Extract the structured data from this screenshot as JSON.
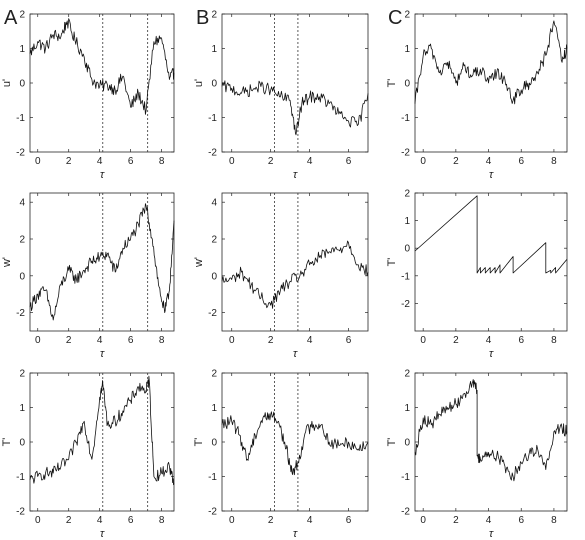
{
  "figure": {
    "column_labels": [
      "A",
      "B",
      "C"
    ]
  },
  "chart_data": [
    {
      "id": "A1",
      "type": "line",
      "xlabel": "τ",
      "ylabel": "u'",
      "xlim": [
        -0.5,
        8.8
      ],
      "ylim": [
        -2,
        2
      ],
      "xticks": [
        0,
        2,
        4,
        6,
        8
      ],
      "yticks": [
        -2,
        -1,
        0,
        1,
        2
      ],
      "vlines": [
        4.2,
        7.1
      ],
      "series": [
        {
          "x": [
            -0.5,
            0,
            0.5,
            1,
            1.5,
            1.9,
            2.4,
            3,
            3.5,
            4,
            4.5,
            5,
            5.5,
            6,
            6.5,
            7,
            7.5,
            8,
            8.5,
            8.8
          ],
          "values": [
            0.85,
            1.2,
            1.0,
            1.4,
            1.35,
            1.8,
            1.25,
            0.75,
            0.1,
            -0.1,
            -0.05,
            -0.2,
            0.2,
            -0.7,
            -0.3,
            -0.8,
            1.2,
            1.3,
            0.1,
            0.3
          ]
        }
      ]
    },
    {
      "id": "A2",
      "type": "line",
      "xlabel": "τ",
      "ylabel": "w'",
      "xlim": [
        -0.5,
        8.8
      ],
      "ylim": [
        -3,
        4.5
      ],
      "xticks": [
        0,
        2,
        4,
        6,
        8
      ],
      "yticks": [
        -2,
        0,
        2,
        4
      ],
      "vlines": [
        4.2,
        7.1
      ],
      "series": [
        {
          "x": [
            -0.5,
            0,
            0.5,
            1,
            1.5,
            2,
            2.5,
            3,
            3.5,
            4,
            4.5,
            5,
            5.5,
            6,
            6.5,
            7,
            7.4,
            7.8,
            8.2,
            8.5,
            8.8
          ],
          "values": [
            -1.7,
            -1.0,
            -0.8,
            -2.4,
            -0.5,
            0.3,
            -0.2,
            0.3,
            0.8,
            1.0,
            1.2,
            0.2,
            1.5,
            2.0,
            2.8,
            3.8,
            2.0,
            -0.5,
            -2.0,
            -0.8,
            3.0
          ]
        }
      ]
    },
    {
      "id": "A3",
      "type": "line",
      "xlabel": "τ",
      "ylabel": "T'",
      "xlim": [
        -0.5,
        8.8
      ],
      "ylim": [
        -2,
        2
      ],
      "xticks": [
        0,
        2,
        4,
        6,
        8
      ],
      "yticks": [
        -2,
        -1,
        0,
        1,
        2
      ],
      "vlines": [
        4.2,
        7.1
      ],
      "series": [
        {
          "x": [
            -0.5,
            0,
            0.5,
            1,
            1.5,
            2,
            2.5,
            3,
            3.5,
            4,
            4.2,
            4.5,
            5,
            5.5,
            6,
            6.5,
            7,
            7.2,
            7.5,
            8,
            8.5,
            8.8
          ],
          "values": [
            -1.1,
            -1.0,
            -0.9,
            -0.9,
            -0.7,
            -0.5,
            0.0,
            0.6,
            -0.5,
            1.3,
            1.7,
            0.5,
            0.6,
            0.9,
            1.2,
            1.6,
            1.5,
            1.8,
            -1.0,
            -0.9,
            -0.7,
            -1.2
          ]
        }
      ]
    },
    {
      "id": "B1",
      "type": "line",
      "xlabel": "τ",
      "ylabel": "u'",
      "xlim": [
        -0.5,
        7.0
      ],
      "ylim": [
        -2,
        2
      ],
      "xticks": [
        0,
        2,
        4,
        6
      ],
      "yticks": [
        -2,
        -1,
        0,
        1,
        2
      ],
      "vlines": [
        2.2,
        3.4
      ],
      "series": [
        {
          "x": [
            -0.5,
            0,
            0.5,
            1,
            1.5,
            2,
            2.5,
            3,
            3.3,
            3.6,
            4,
            4.5,
            5,
            5.5,
            6,
            6.5,
            7
          ],
          "values": [
            -0.1,
            -0.15,
            -0.3,
            -0.2,
            -0.1,
            -0.2,
            -0.4,
            -0.5,
            -1.5,
            -0.6,
            -0.4,
            -0.4,
            -0.6,
            -0.9,
            -1.1,
            -1.2,
            -0.3
          ]
        }
      ]
    },
    {
      "id": "B2",
      "type": "line",
      "xlabel": "τ",
      "ylabel": "w'",
      "xlim": [
        -0.5,
        7.0
      ],
      "ylim": [
        -3,
        4.5
      ],
      "xticks": [
        0,
        2,
        4,
        6
      ],
      "yticks": [
        -2,
        0,
        2,
        4
      ],
      "vlines": [
        2.2,
        3.4
      ],
      "series": [
        {
          "x": [
            -0.5,
            0,
            0.5,
            1,
            1.5,
            2,
            2.5,
            3,
            3.5,
            4,
            4.5,
            5,
            5.5,
            6,
            6.5,
            7
          ],
          "values": [
            -0.3,
            -0.2,
            0.2,
            -0.5,
            -1.2,
            -1.6,
            -0.8,
            -0.3,
            0.0,
            0.6,
            1.0,
            1.3,
            1.4,
            1.8,
            0.6,
            0.2
          ]
        }
      ]
    },
    {
      "id": "B3",
      "type": "line",
      "xlabel": "τ",
      "ylabel": "T'",
      "xlim": [
        -0.5,
        7.0
      ],
      "ylim": [
        -2,
        2
      ],
      "xticks": [
        0,
        2,
        4,
        6
      ],
      "yticks": [
        -2,
        -1,
        0,
        1,
        2
      ],
      "vlines": [
        2.2,
        3.4
      ],
      "series": [
        {
          "x": [
            -0.5,
            0,
            0.4,
            0.8,
            1.2,
            1.6,
            2,
            2.4,
            2.8,
            3.1,
            3.4,
            3.8,
            4.2,
            4.6,
            5,
            5.5,
            6,
            6.5,
            7
          ],
          "values": [
            0.5,
            0.6,
            0.2,
            -0.5,
            0.2,
            0.7,
            0.8,
            0.6,
            -0.2,
            -0.9,
            -0.6,
            0.3,
            0.5,
            0.5,
            0.0,
            -0.1,
            0.0,
            -0.2,
            0.0
          ]
        }
      ]
    },
    {
      "id": "C1",
      "type": "line",
      "xlabel": "τ",
      "ylabel": "T'",
      "xlim": [
        -0.5,
        8.8
      ],
      "ylim": [
        -2,
        2
      ],
      "xticks": [
        0,
        2,
        4,
        6,
        8
      ],
      "yticks": [
        -2,
        -1,
        0,
        1,
        2
      ],
      "vlines": [],
      "series": [
        {
          "x": [
            -0.5,
            0,
            0.5,
            1,
            1.5,
            2,
            2.5,
            3,
            3.5,
            4,
            4.5,
            5,
            5.5,
            6,
            6.5,
            7,
            7.5,
            8,
            8.5,
            8.8
          ],
          "values": [
            -0.6,
            0.8,
            1.0,
            0.3,
            0.6,
            0.0,
            0.5,
            0.2,
            0.4,
            0.0,
            0.3,
            0.1,
            -0.5,
            -0.2,
            0.0,
            0.3,
            0.8,
            1.8,
            0.6,
            1.0
          ]
        }
      ]
    },
    {
      "id": "C2",
      "type": "line",
      "xlabel": "τ",
      "ylabel": "T'",
      "xlim": [
        -0.5,
        8.8
      ],
      "ylim": [
        -3,
        2
      ],
      "xticks": [
        0,
        2,
        4,
        6,
        8
      ],
      "yticks": [
        -2,
        -1,
        0,
        1,
        2
      ],
      "vlines": [],
      "series": [
        {
          "x": [
            -0.5,
            3.3,
            3.3,
            3.5,
            3.5,
            3.8,
            3.8,
            4.1,
            4.1,
            4.4,
            4.4,
            4.7,
            4.7,
            5.5,
            5.5,
            7.5,
            7.5,
            7.8,
            7.8,
            8.1,
            8.1,
            8.8
          ],
          "values": [
            -0.1,
            1.9,
            -0.9,
            -0.7,
            -0.9,
            -0.7,
            -0.9,
            -0.7,
            -0.9,
            -0.7,
            -0.9,
            -0.6,
            -0.9,
            -0.3,
            -0.9,
            0.2,
            -0.9,
            -0.8,
            -0.9,
            -0.7,
            -0.9,
            -0.4
          ]
        }
      ]
    },
    {
      "id": "C3",
      "type": "line",
      "xlabel": "τ",
      "ylabel": "T'",
      "xlim": [
        -0.5,
        8.8
      ],
      "ylim": [
        -2,
        2
      ],
      "xticks": [
        0,
        2,
        4,
        6,
        8
      ],
      "yticks": [
        -2,
        -1,
        0,
        1,
        2
      ],
      "vlines": [],
      "series": [
        {
          "x": [
            -0.5,
            0,
            0.5,
            1,
            1.5,
            2,
            2.5,
            3,
            3.3,
            3.3,
            3.5,
            4,
            4.5,
            5,
            5.5,
            6,
            6.5,
            7,
            7.5,
            8,
            8.5,
            8.8
          ],
          "values": [
            -0.3,
            0.7,
            0.5,
            0.8,
            1.0,
            1.1,
            1.4,
            1.7,
            1.5,
            -0.4,
            -0.5,
            -0.3,
            -0.4,
            -0.7,
            -1.0,
            -0.6,
            -0.3,
            -0.2,
            -0.8,
            0.3,
            0.4,
            0.3
          ]
        }
      ]
    }
  ]
}
